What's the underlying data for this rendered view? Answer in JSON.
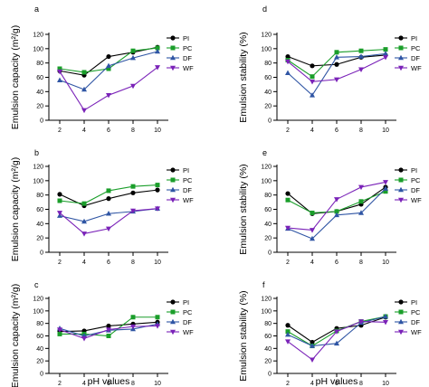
{
  "figure": {
    "x_axis_label": "pH values",
    "legend_entries": [
      "PI",
      "PC",
      "DF",
      "WF"
    ],
    "series_colors": {
      "PI": "#000000",
      "PC": "#1a9e2a",
      "DF": "#2f55a4",
      "WF": "#7a22b8"
    },
    "series_markers": {
      "PI": "circle",
      "PC": "square",
      "DF": "triangle-up",
      "WF": "triangle-down"
    }
  },
  "chart_data": [
    {
      "panel": "a",
      "type": "line",
      "ylabel": "Emulsion capacity (m²/g)",
      "x": [
        2,
        4,
        6,
        8,
        10
      ],
      "ylim": [
        0,
        120
      ],
      "yticks": [
        0,
        20,
        40,
        60,
        80,
        100,
        120
      ],
      "legend_position": "top-right",
      "series": [
        {
          "name": "PI",
          "values": [
            69,
            63,
            89,
            95,
            102
          ]
        },
        {
          "name": "PC",
          "values": [
            72,
            67,
            72,
            97,
            101
          ]
        },
        {
          "name": "DF",
          "values": [
            56,
            43,
            76,
            87,
            96
          ]
        },
        {
          "name": "WF",
          "values": [
            68,
            14,
            35,
            48,
            74
          ]
        }
      ]
    },
    {
      "panel": "b",
      "type": "line",
      "ylabel": "Emulsion capacity (m²/g)",
      "x": [
        2,
        4,
        6,
        8,
        10
      ],
      "ylim": [
        0,
        120
      ],
      "yticks": [
        0,
        20,
        40,
        60,
        80,
        100,
        120
      ],
      "legend_position": "top-right",
      "series": [
        {
          "name": "PI",
          "values": [
            81,
            65,
            75,
            83,
            87
          ]
        },
        {
          "name": "PC",
          "values": [
            72,
            68,
            86,
            92,
            94
          ]
        },
        {
          "name": "DF",
          "values": [
            51,
            43,
            54,
            57,
            61
          ]
        },
        {
          "name": "WF",
          "values": [
            55,
            26,
            33,
            58,
            61
          ]
        }
      ]
    },
    {
      "panel": "c",
      "type": "line",
      "ylabel": "Emulsion capacity (m²/g)",
      "x": [
        2,
        4,
        6,
        8,
        10
      ],
      "ylim": [
        0,
        120
      ],
      "yticks": [
        0,
        20,
        40,
        60,
        80,
        100,
        120
      ],
      "legend_position": "top-right",
      "series": [
        {
          "name": "PI",
          "values": [
            67,
            68,
            76,
            79,
            82
          ]
        },
        {
          "name": "PC",
          "values": [
            63,
            63,
            60,
            90,
            90
          ]
        },
        {
          "name": "DF",
          "values": [
            72,
            60,
            69,
            71,
            79
          ]
        },
        {
          "name": "WF",
          "values": [
            70,
            56,
            70,
            75,
            76
          ]
        }
      ]
    },
    {
      "panel": "d",
      "type": "line",
      "ylabel": "Emulsion stability (%)",
      "x": [
        2,
        4,
        6,
        8,
        10
      ],
      "ylim": [
        0,
        120
      ],
      "yticks": [
        0,
        20,
        40,
        60,
        80,
        100,
        120
      ],
      "legend_position": "top-right",
      "series": [
        {
          "name": "PI",
          "values": [
            89,
            76,
            78,
            88,
            91
          ]
        },
        {
          "name": "PC",
          "values": [
            84,
            61,
            95,
            97,
            99
          ]
        },
        {
          "name": "DF",
          "values": [
            66,
            35,
            88,
            89,
            93
          ]
        },
        {
          "name": "WF",
          "values": [
            82,
            54,
            57,
            71,
            88
          ]
        }
      ]
    },
    {
      "panel": "e",
      "type": "line",
      "ylabel": "Emulsion stability (%)",
      "x": [
        2,
        4,
        6,
        8,
        10
      ],
      "ylim": [
        0,
        120
      ],
      "yticks": [
        0,
        20,
        40,
        60,
        80,
        100,
        120
      ],
      "legend_position": "top-right",
      "series": [
        {
          "name": "PI",
          "values": [
            82,
            54,
            57,
            67,
            91
          ]
        },
        {
          "name": "PC",
          "values": [
            73,
            55,
            57,
            71,
            85
          ]
        },
        {
          "name": "DF",
          "values": [
            33,
            19,
            52,
            55,
            89
          ]
        },
        {
          "name": "WF",
          "values": [
            34,
            31,
            74,
            91,
            98
          ]
        }
      ]
    },
    {
      "panel": "f",
      "type": "line",
      "ylabel": "Emulsion stability (%)",
      "x": [
        2,
        4,
        6,
        8,
        10
      ],
      "ylim": [
        0,
        120
      ],
      "yticks": [
        0,
        20,
        40,
        60,
        80,
        100,
        120
      ],
      "legend_position": "top-right",
      "series": [
        {
          "name": "PI",
          "values": [
            77,
            50,
            72,
            77,
            90
          ]
        },
        {
          "name": "PC",
          "values": [
            67,
            44,
            68,
            83,
            91
          ]
        },
        {
          "name": "DF",
          "values": [
            62,
            44,
            48,
            81,
            91
          ]
        },
        {
          "name": "WF",
          "values": [
            51,
            22,
            67,
            83,
            82
          ]
        }
      ]
    }
  ]
}
